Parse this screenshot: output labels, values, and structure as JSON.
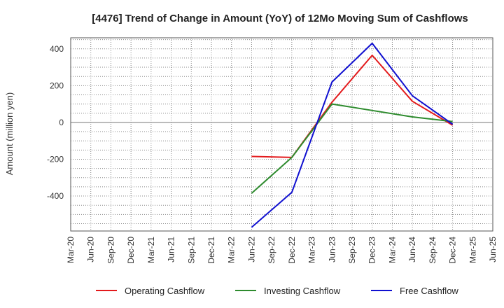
{
  "chart_data": {
    "type": "line",
    "title": "[4476]  Trend of Change in Amount (YoY) of 12Mo Moving Sum of Cashflows",
    "xlabel": "",
    "ylabel": "Amount (million yen)",
    "ylim": [
      -590,
      460
    ],
    "yticks": [
      400,
      200,
      0,
      -200,
      -400
    ],
    "ytick_labels": [
      "400",
      "200",
      "0",
      "-200",
      "-400"
    ],
    "categories": [
      "Mar-20",
      "Jun-20",
      "Sep-20",
      "Dec-20",
      "Mar-21",
      "Jun-21",
      "Sep-21",
      "Dec-21",
      "Mar-22",
      "Jun-22",
      "Sep-22",
      "Dec-22",
      "Mar-23",
      "Jun-23",
      "Sep-23",
      "Dec-23",
      "Mar-24",
      "Jun-24",
      "Sep-24",
      "Dec-24",
      "Mar-25",
      "Jun-25"
    ],
    "grid": true,
    "legend_position": "bottom",
    "series": [
      {
        "name": "Operating Cashflow",
        "color": "#e31a1c",
        "values": [
          null,
          null,
          null,
          null,
          null,
          null,
          null,
          null,
          null,
          -185,
          null,
          -190,
          null,
          110,
          null,
          365,
          null,
          115,
          null,
          -15,
          null,
          null
        ]
      },
      {
        "name": "Investing Cashflow",
        "color": "#2e8b2e",
        "values": [
          null,
          null,
          null,
          null,
          null,
          null,
          null,
          null,
          null,
          -385,
          null,
          -190,
          null,
          100,
          null,
          65,
          null,
          30,
          null,
          5,
          null,
          null
        ]
      },
      {
        "name": "Free Cashflow",
        "color": "#1010d0",
        "values": [
          null,
          null,
          null,
          null,
          null,
          null,
          null,
          null,
          null,
          -570,
          null,
          -380,
          null,
          220,
          null,
          430,
          null,
          145,
          null,
          -10,
          null,
          null
        ]
      }
    ]
  }
}
